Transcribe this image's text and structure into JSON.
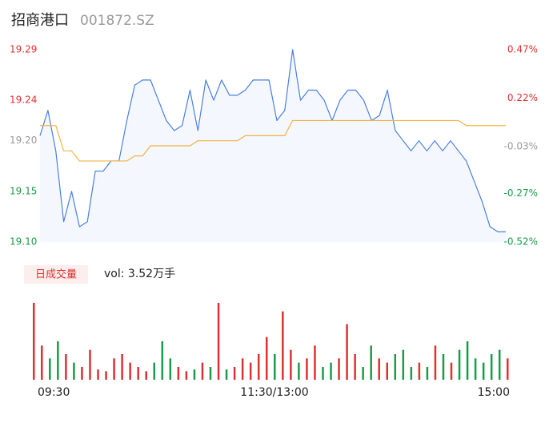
{
  "chart_data": [
    {
      "type": "line",
      "title": "招商港口",
      "subtitle": "001872.SZ",
      "series": [
        {
          "color": "#4a7fe0",
          "fill": "#f4f7fd",
          "values": [
            19.205,
            19.23,
            19.19,
            19.12,
            19.15,
            19.115,
            19.12,
            19.17,
            19.17,
            19.18,
            19.18,
            19.22,
            19.255,
            19.26,
            19.26,
            19.24,
            19.22,
            19.21,
            19.215,
            19.25,
            19.21,
            19.26,
            19.24,
            19.26,
            19.245,
            19.245,
            19.25,
            19.26,
            19.26,
            19.26,
            19.22,
            19.23,
            19.29,
            19.24,
            19.25,
            19.25,
            19.24,
            19.22,
            19.24,
            19.25,
            19.25,
            19.24,
            19.22,
            19.225,
            19.25,
            19.21,
            19.2,
            19.19,
            19.2,
            19.19,
            19.2,
            19.19,
            19.2,
            19.19,
            19.18,
            19.16,
            19.14,
            19.115,
            19.11,
            19.11
          ]
        },
        {
          "color": "#f2b443",
          "values": [
            19.215,
            19.215,
            19.215,
            19.19,
            19.19,
            19.18,
            19.18,
            19.18,
            19.18,
            19.18,
            19.18,
            19.18,
            19.185,
            19.185,
            19.195,
            19.195,
            19.195,
            19.195,
            19.195,
            19.195,
            19.2,
            19.2,
            19.2,
            19.2,
            19.2,
            19.2,
            19.205,
            19.205,
            19.205,
            19.205,
            19.205,
            19.205,
            19.22,
            19.22,
            19.22,
            19.22,
            19.22,
            19.22,
            19.22,
            19.22,
            19.22,
            19.22,
            19.22,
            19.22,
            19.22,
            19.22,
            19.22,
            19.22,
            19.22,
            19.22,
            19.22,
            19.22,
            19.22,
            19.22,
            19.215,
            19.215,
            19.215,
            19.215,
            19.215,
            19.215
          ]
        }
      ],
      "ylim": [
        19.1,
        19.29
      ],
      "yticks": [
        {
          "value": 19.1,
          "label": "19.10"
        },
        19.15,
        {
          "value": 19.2,
          "label": "19.20"
        },
        19.24,
        19.29
      ],
      "y2lim": [
        -0.52,
        0.47
      ],
      "y2ticks": [
        {
          "value": -0.52,
          "label": "-0.52%"
        },
        {
          "value": -0.27,
          "label": "-0.27%"
        },
        {
          "value": -0.03,
          "label": "-0.03%"
        },
        {
          "value": 0.22,
          "label": "0.22%"
        },
        {
          "value": 0.47,
          "label": "0.47%"
        }
      ],
      "tick_colors": [
        "#1a9b4a",
        "#1a9b4a",
        "#999999",
        "#e03030",
        "#e03030"
      ]
    },
    {
      "type": "bar",
      "button": "日成交量",
      "vol_label": "vol: 3.52万手",
      "categories": [
        "09:30",
        null,
        null,
        null,
        null,
        null,
        null,
        null,
        null,
        null,
        null,
        null,
        null,
        null,
        null,
        null,
        null,
        null,
        null,
        null,
        null,
        null,
        null,
        null,
        null,
        null,
        null,
        null,
        null,
        null,
        "11:30/13:00",
        null,
        null,
        null,
        null,
        null,
        null,
        null,
        null,
        null,
        null,
        null,
        null,
        null,
        null,
        null,
        null,
        null,
        null,
        null,
        null,
        null,
        null,
        null,
        null,
        null,
        null,
        null,
        null,
        "15:00"
      ],
      "values": [
        900,
        400,
        250,
        450,
        300,
        200,
        150,
        350,
        120,
        100,
        250,
        300,
        200,
        150,
        100,
        200,
        450,
        250,
        150,
        100,
        120,
        200,
        150,
        900,
        120,
        150,
        250,
        200,
        300,
        500,
        300,
        800,
        350,
        200,
        250,
        400,
        150,
        200,
        250,
        650,
        300,
        150,
        400,
        250,
        200,
        300,
        350,
        150,
        200,
        150,
        400,
        300,
        200,
        350,
        450,
        250,
        200,
        300,
        350,
        250
      ],
      "up_color": "#e03030",
      "down_color": "#1a9b4a"
    }
  ]
}
